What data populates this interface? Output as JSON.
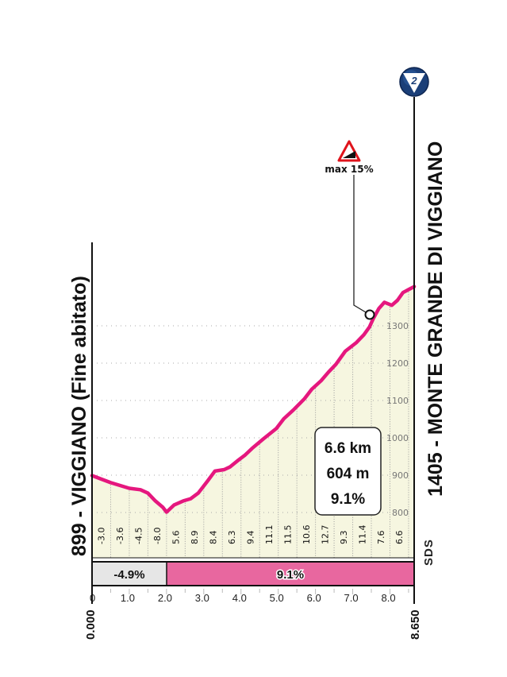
{
  "chart_data": {
    "type": "area",
    "title_start": "899 - VIGGIANO (Fine abitato)",
    "title_end": "1405 - MONTE GRANDE DI VIGGIANO",
    "xlabel": "km",
    "ylabel": "m",
    "xlim": [
      0,
      8.65
    ],
    "ylim": [
      800,
      1405
    ],
    "x_ticks": [
      "1.0",
      "2.0",
      "3.0",
      "4.0",
      "5.0",
      "6.0",
      "7.0",
      "8.0"
    ],
    "x_start_label": "0.000",
    "x_end_label": "8.650",
    "y_ticks": [
      "800",
      "900",
      "1000",
      "1100",
      "1200",
      "1300"
    ],
    "profile": {
      "x": [
        0,
        0.5,
        1.0,
        1.3,
        1.5,
        1.7,
        1.9,
        2.0,
        2.2,
        2.45,
        2.65,
        2.85,
        3.1,
        3.3,
        3.55,
        3.7,
        3.9,
        4.1,
        4.3,
        4.6,
        4.95,
        5.15,
        5.4,
        5.7,
        5.9,
        6.15,
        6.35,
        6.55,
        6.8,
        7.1,
        7.3,
        7.45,
        7.55,
        7.7,
        7.85,
        8.05,
        8.2,
        8.35,
        8.5,
        8.65
      ],
      "y": [
        899,
        880,
        865,
        861,
        852,
        831,
        814,
        801,
        820,
        831,
        837,
        852,
        884,
        911,
        915,
        922,
        938,
        953,
        972,
        997,
        1025,
        1051,
        1074,
        1104,
        1130,
        1153,
        1176,
        1197,
        1232,
        1255,
        1276,
        1297,
        1319,
        1346,
        1363,
        1355,
        1368,
        1389,
        1397,
        1405
      ]
    },
    "segment_gradients": [
      "-3.0",
      "-3.6",
      "-4.5",
      "-8.0",
      "5.6",
      "8.9",
      "8.4",
      "6.3",
      "9.4",
      "11.1",
      "11.5",
      "10.6",
      "12.7",
      "9.3",
      "11.4",
      "7.6",
      "6.6"
    ],
    "segments": [
      {
        "from": 0,
        "to": 2.0,
        "label": "-4.9%",
        "color": "#e6e6e6"
      },
      {
        "from": 2.0,
        "to": 8.65,
        "label": "9.1%",
        "color": "#e8679f"
      }
    ],
    "summary": {
      "distance": "6.6 km",
      "gain": "604 m",
      "gradient": "9.1%"
    },
    "annotation": {
      "label": "max 15%",
      "km": 7.45,
      "elev": 1300
    },
    "grid": true
  },
  "badge": {
    "number": "2"
  },
  "watermark": "SDS",
  "colors": {
    "line": "#e5177e",
    "fill": "#f6f6e0",
    "bar_pink": "#e8679f",
    "bar_gray": "#e6e6e6",
    "badge": "#1b3f78"
  }
}
